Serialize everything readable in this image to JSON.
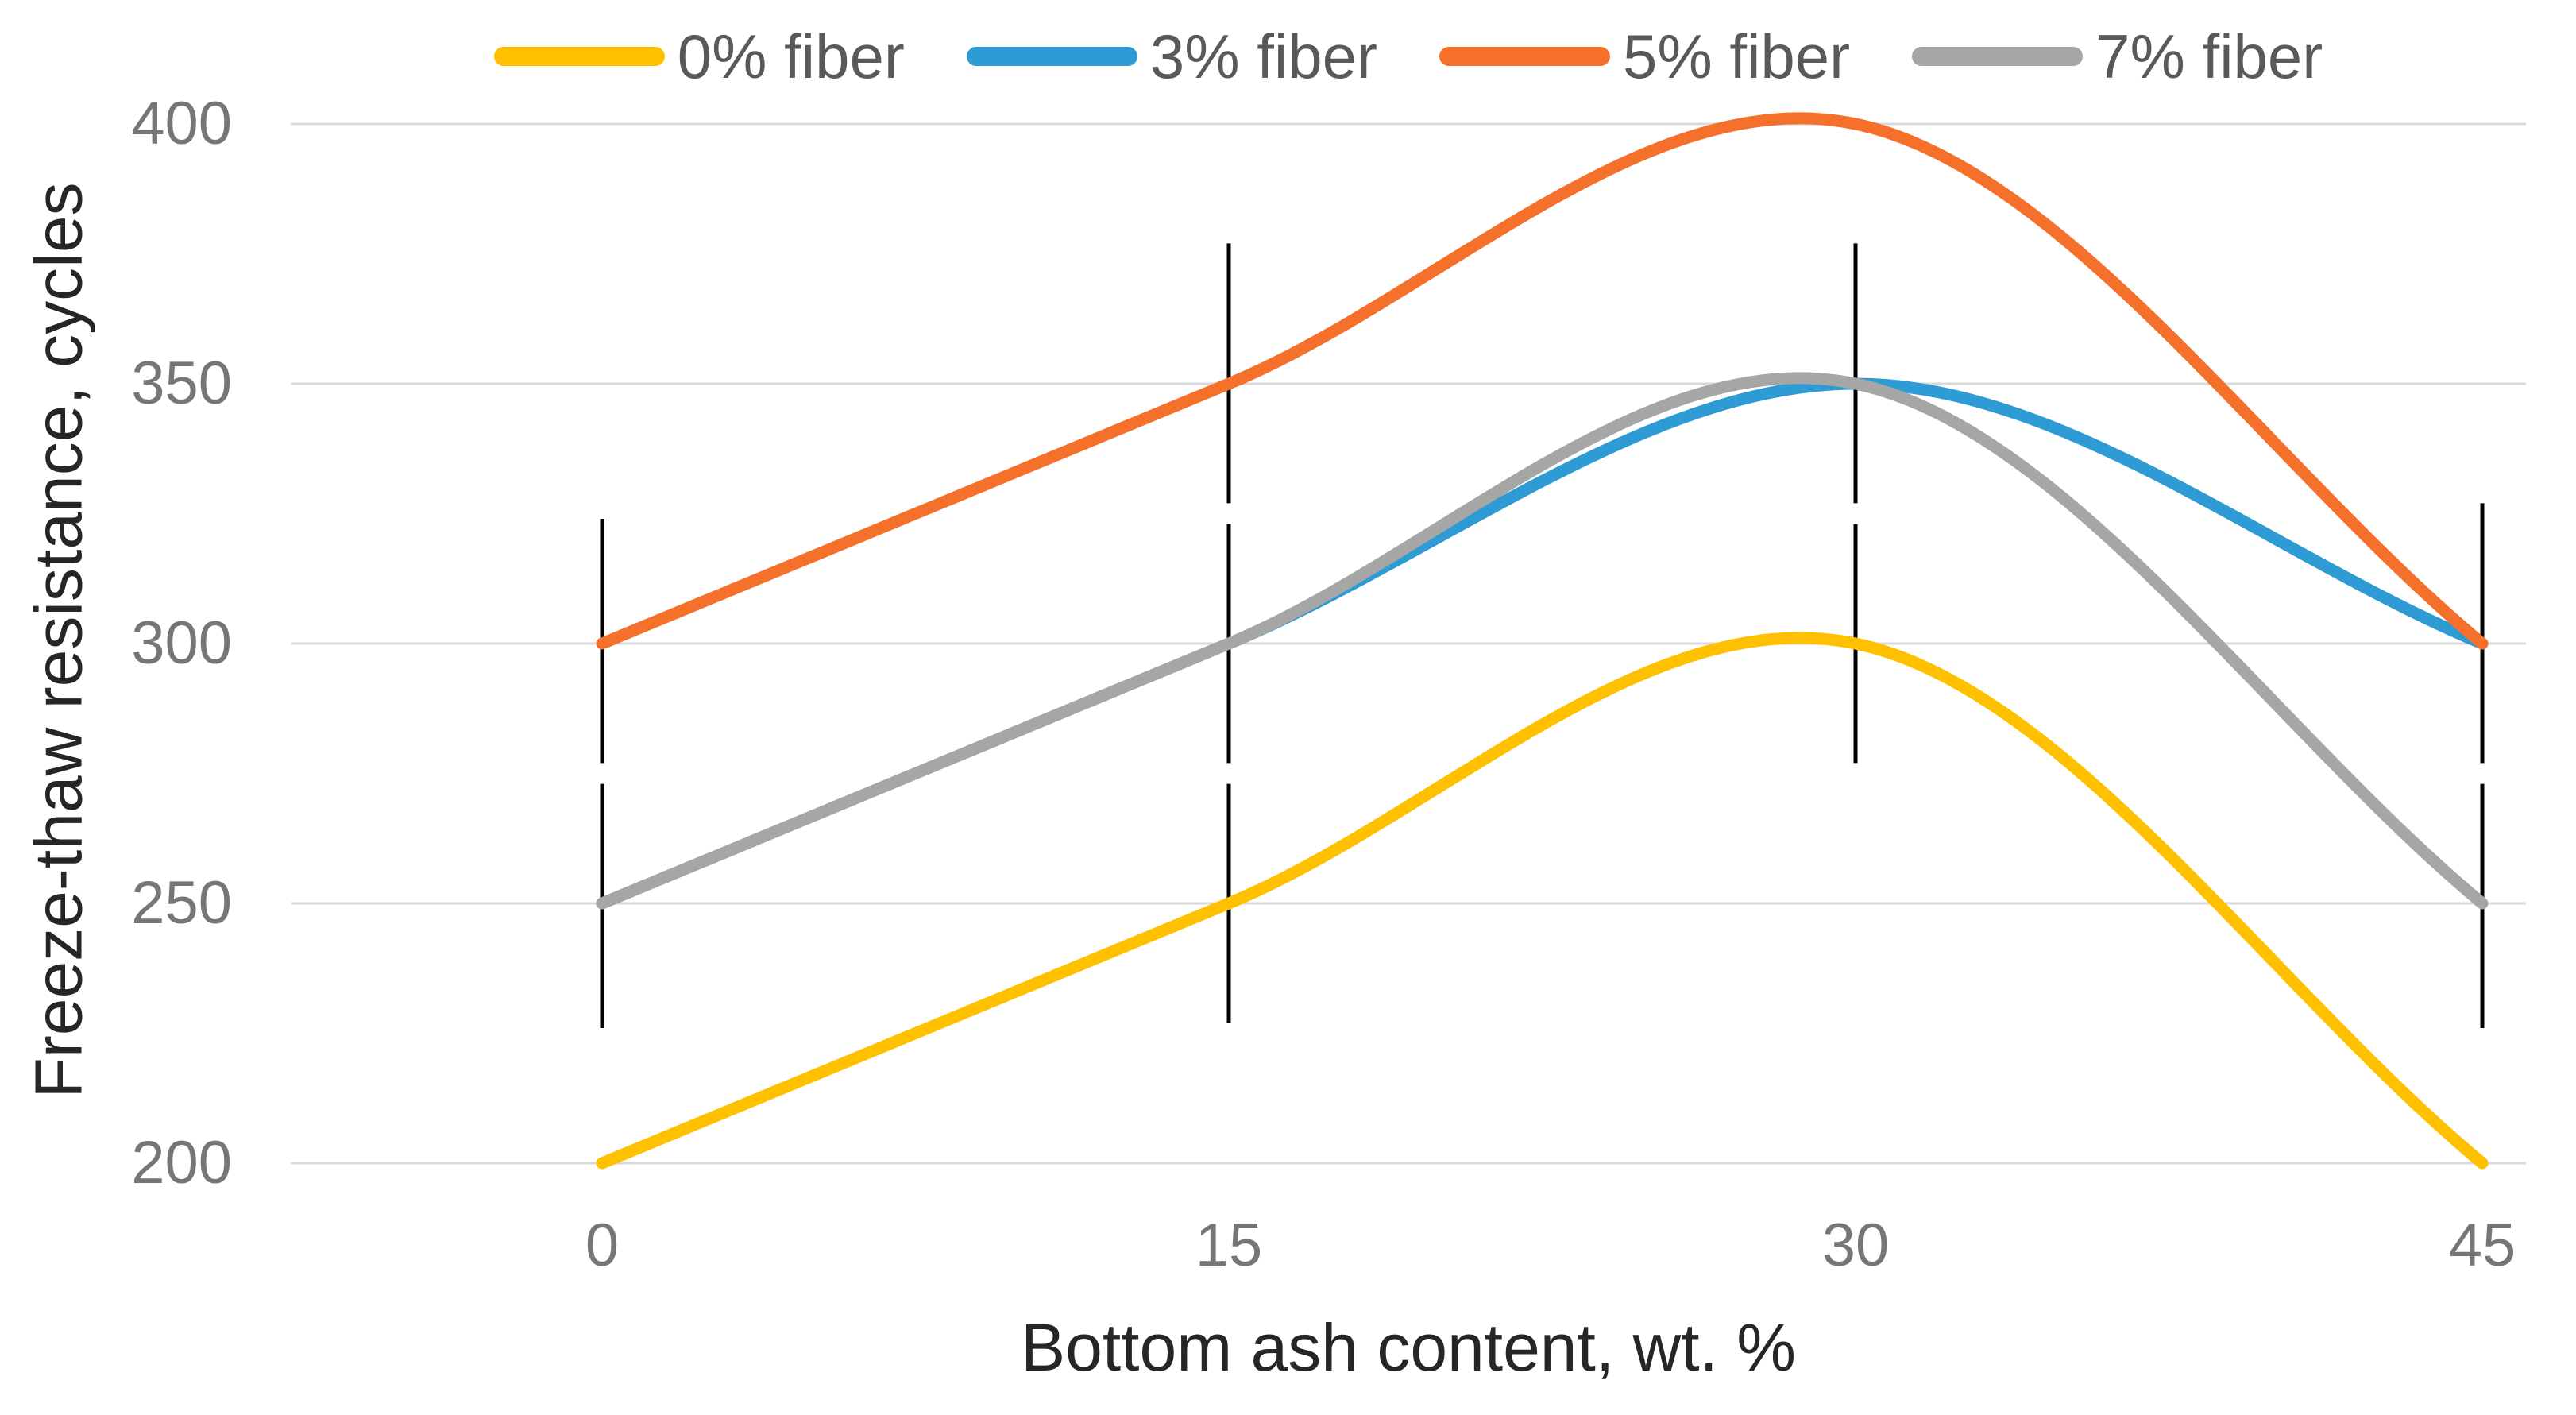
{
  "chart_data": {
    "type": "line",
    "line_style": "smooth",
    "title": "",
    "xlabel": "Bottom ash content, wt. %",
    "ylabel": "Freeze-thaw resistance, cycles",
    "x": [
      0,
      15,
      30,
      45
    ],
    "xticks": [
      0,
      15,
      30,
      45
    ],
    "yticks": [
      200,
      250,
      300,
      350,
      400
    ],
    "xlim": [
      0,
      45
    ],
    "ylim": [
      200,
      400
    ],
    "grid": "horizontal",
    "legend_position": "top",
    "series": [
      {
        "name": "0% fiber",
        "color": "#FFC000",
        "values": [
          200,
          250,
          300,
          200
        ]
      },
      {
        "name": "3% fiber",
        "color": "#2E9BD5",
        "values": [
          250,
          300,
          350,
          300
        ]
      },
      {
        "name": "5% fiber",
        "color": "#F4702B",
        "values": [
          300,
          350,
          400,
          300
        ]
      },
      {
        "name": "7% fiber",
        "color": "#A6A6A6",
        "values": [
          250,
          300,
          350,
          250
        ]
      }
    ],
    "error_bars": {
      "color": "#000000",
      "segments": [
        {
          "x": 0,
          "from": 226,
          "to": 273
        },
        {
          "x": 0,
          "from": 277,
          "to": 324
        },
        {
          "x": 15,
          "from": 227,
          "to": 273
        },
        {
          "x": 15,
          "from": 277,
          "to": 323
        },
        {
          "x": 15,
          "from": 327,
          "to": 377
        },
        {
          "x": 30,
          "from": 277,
          "to": 323
        },
        {
          "x": 30,
          "from": 327,
          "to": 377
        },
        {
          "x": 45,
          "from": 226,
          "to": 273
        },
        {
          "x": 45,
          "from": 277,
          "to": 327
        }
      ]
    }
  },
  "style": {
    "background": "#FFFFFF",
    "gridline_color": "#D9D9D9",
    "tick_label_color": "#767676",
    "axis_title_color": "#262626",
    "legend_text_color": "#595959",
    "error_bar_color": "#000000"
  }
}
